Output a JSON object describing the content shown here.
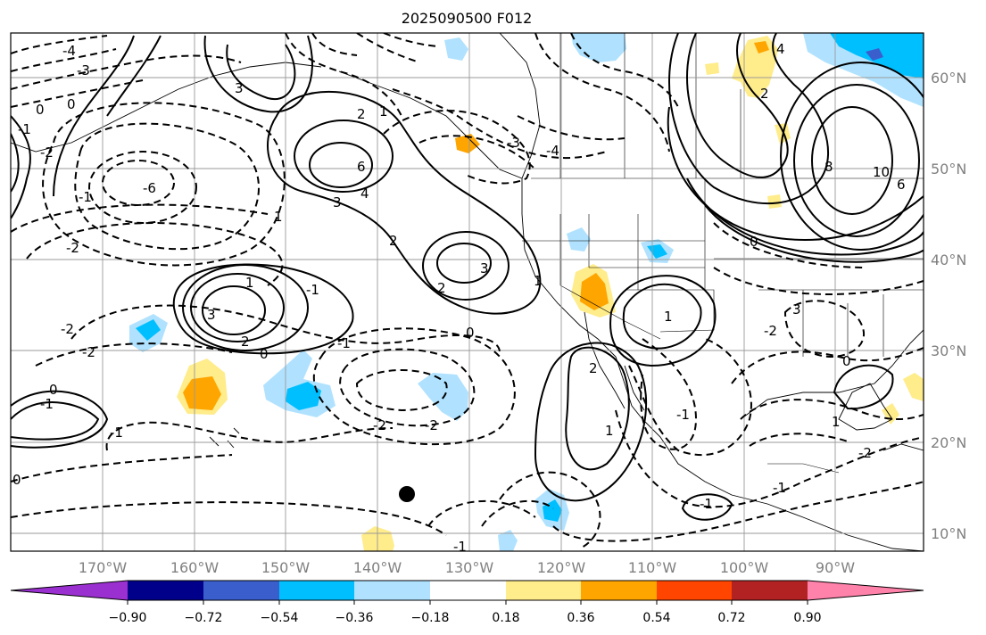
{
  "title": "2025090500 F012",
  "map": {
    "lon_labels": [
      "170°W",
      "160°W",
      "150°W",
      "140°W",
      "130°W",
      "120°W",
      "110°W",
      "100°W",
      "90°W"
    ],
    "lat_labels": [
      "60°N",
      "50°N",
      "40°N",
      "30°N",
      "20°N",
      "10°N"
    ],
    "contour_labels": [
      "-4",
      "-3",
      "0",
      "0",
      "-1",
      "-2",
      "-6",
      "3",
      "2",
      "1",
      "4",
      "6",
      "3",
      "2",
      "1",
      "2",
      "3",
      "1",
      "-1",
      "-2",
      "3",
      "2",
      "0",
      "-2",
      "-2",
      "-2",
      "-1",
      "-2",
      "-1",
      "1",
      "-1",
      "0",
      "-1",
      "0",
      "-1",
      "2",
      "1",
      "0",
      "-1",
      "1",
      "3",
      "-2",
      "-4",
      "-3",
      "4",
      "2",
      "8",
      "10",
      "6",
      "0",
      "1",
      "0",
      "-1",
      "-2",
      "-1"
    ]
  },
  "colorbar": {
    "tick_labels": [
      "−0.90",
      "−0.72",
      "−0.54",
      "−0.36",
      "−0.18",
      "0.18",
      "0.36",
      "0.54",
      "0.72",
      "0.90"
    ],
    "colors": [
      "#9b30d0",
      "#00008b",
      "#3a5fcd",
      "#00bfff",
      "#b0e2ff",
      "#ffffff",
      "#ffec8b",
      "#ffa500",
      "#ff4500",
      "#b22222",
      "#ff82ab"
    ]
  },
  "colors": {
    "grid": "#999999",
    "axis_text": "#808080",
    "neg_strong": "#00bfff",
    "neg_weak": "#b0e2ff",
    "pos_weak": "#ffec8b",
    "pos_mid": "#ffa500"
  }
}
